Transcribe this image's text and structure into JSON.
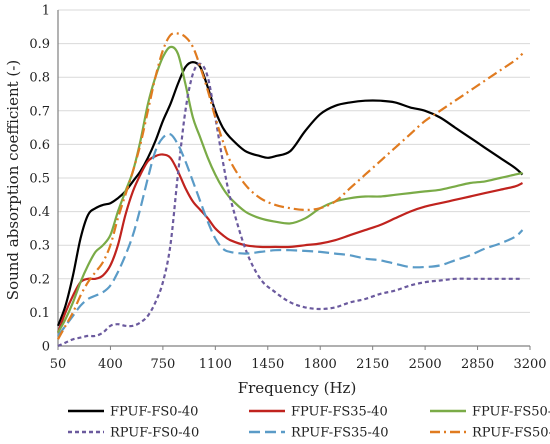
{
  "chart_data": {
    "type": "line",
    "title": "",
    "xlabel": "Frequency (Hz)",
    "ylabel": "Sound absorption coefficient (-)",
    "xlim": [
      50,
      3200
    ],
    "ylim": [
      0,
      1
    ],
    "xticks": [
      50,
      400,
      750,
      1100,
      1450,
      1800,
      2150,
      2500,
      2850,
      3200
    ],
    "yticks": [
      0,
      0.1,
      0.2,
      0.3,
      0.4,
      0.5,
      0.6,
      0.7,
      0.8,
      0.9,
      1
    ],
    "grid": "horizontal",
    "legend_position": "bottom",
    "series": [
      {
        "name": "FPUF-FS0-40",
        "color": "#000000",
        "dash": "solid",
        "x": [
          50,
          100,
          150,
          200,
          250,
          300,
          350,
          400,
          450,
          500,
          550,
          600,
          650,
          700,
          750,
          800,
          850,
          900,
          950,
          1000,
          1050,
          1100,
          1150,
          1200,
          1300,
          1400,
          1450,
          1500,
          1600,
          1700,
          1800,
          1900,
          2000,
          2100,
          2200,
          2300,
          2400,
          2500,
          2600,
          2700,
          2800,
          2900,
          3000,
          3100,
          3150
        ],
        "y": [
          0.06,
          0.12,
          0.21,
          0.32,
          0.39,
          0.41,
          0.42,
          0.425,
          0.44,
          0.46,
          0.49,
          0.52,
          0.56,
          0.61,
          0.67,
          0.72,
          0.78,
          0.83,
          0.845,
          0.83,
          0.77,
          0.7,
          0.65,
          0.62,
          0.58,
          0.565,
          0.56,
          0.565,
          0.58,
          0.64,
          0.69,
          0.715,
          0.725,
          0.73,
          0.73,
          0.725,
          0.71,
          0.7,
          0.68,
          0.65,
          0.62,
          0.59,
          0.56,
          0.53,
          0.51
        ]
      },
      {
        "name": "FPUF-FS35-40",
        "color": "#c0231e",
        "dash": "solid",
        "x": [
          50,
          100,
          150,
          200,
          250,
          300,
          350,
          400,
          450,
          500,
          550,
          600,
          650,
          700,
          750,
          800,
          850,
          900,
          950,
          1000,
          1050,
          1100,
          1150,
          1200,
          1300,
          1400,
          1500,
          1600,
          1700,
          1800,
          1900,
          2000,
          2100,
          2200,
          2300,
          2400,
          2500,
          2600,
          2700,
          2800,
          2900,
          3000,
          3100,
          3150
        ],
        "y": [
          0.04,
          0.1,
          0.15,
          0.19,
          0.2,
          0.2,
          0.21,
          0.24,
          0.3,
          0.39,
          0.46,
          0.51,
          0.55,
          0.565,
          0.57,
          0.56,
          0.52,
          0.47,
          0.43,
          0.405,
          0.38,
          0.35,
          0.33,
          0.315,
          0.3,
          0.295,
          0.295,
          0.295,
          0.3,
          0.305,
          0.315,
          0.33,
          0.345,
          0.36,
          0.38,
          0.4,
          0.415,
          0.425,
          0.435,
          0.445,
          0.455,
          0.465,
          0.475,
          0.485
        ]
      },
      {
        "name": "FPUF-FS50-40",
        "color": "#7aab47",
        "dash": "solid",
        "x": [
          50,
          100,
          150,
          200,
          250,
          300,
          350,
          400,
          450,
          500,
          550,
          600,
          650,
          700,
          750,
          800,
          850,
          900,
          950,
          1000,
          1050,
          1100,
          1150,
          1200,
          1300,
          1400,
          1500,
          1600,
          1700,
          1800,
          1900,
          2000,
          2100,
          2200,
          2300,
          2400,
          2500,
          2600,
          2700,
          2800,
          2900,
          3000,
          3100,
          3150
        ],
        "y": [
          0.04,
          0.08,
          0.13,
          0.19,
          0.24,
          0.28,
          0.3,
          0.33,
          0.4,
          0.46,
          0.52,
          0.61,
          0.72,
          0.8,
          0.86,
          0.89,
          0.87,
          0.78,
          0.68,
          0.62,
          0.56,
          0.51,
          0.47,
          0.44,
          0.4,
          0.38,
          0.37,
          0.365,
          0.38,
          0.41,
          0.43,
          0.44,
          0.445,
          0.445,
          0.45,
          0.455,
          0.46,
          0.465,
          0.475,
          0.485,
          0.49,
          0.5,
          0.51,
          0.515
        ]
      },
      {
        "name": "RPUF-FS0-40",
        "color": "#6b5a9e",
        "dash": "short",
        "x": [
          50,
          100,
          150,
          200,
          250,
          300,
          350,
          400,
          450,
          500,
          550,
          600,
          650,
          700,
          750,
          800,
          850,
          900,
          950,
          1000,
          1050,
          1100,
          1150,
          1200,
          1300,
          1400,
          1500,
          1600,
          1700,
          1800,
          1900,
          2000,
          2100,
          2200,
          2300,
          2400,
          2500,
          2600,
          2700,
          2800,
          2900,
          3000,
          3100,
          3150
        ],
        "y": [
          0.0,
          0.01,
          0.02,
          0.025,
          0.03,
          0.03,
          0.04,
          0.06,
          0.065,
          0.06,
          0.06,
          0.07,
          0.09,
          0.13,
          0.19,
          0.3,
          0.51,
          0.7,
          0.81,
          0.84,
          0.8,
          0.68,
          0.55,
          0.44,
          0.29,
          0.2,
          0.16,
          0.13,
          0.115,
          0.11,
          0.115,
          0.13,
          0.14,
          0.155,
          0.165,
          0.18,
          0.19,
          0.195,
          0.2,
          0.2,
          0.2,
          0.2,
          0.2,
          0.2
        ]
      },
      {
        "name": "RPUF-FS35-40",
        "color": "#5a9bc7",
        "dash": "long",
        "x": [
          50,
          100,
          150,
          200,
          250,
          300,
          350,
          400,
          450,
          500,
          550,
          600,
          650,
          700,
          750,
          800,
          850,
          900,
          950,
          1000,
          1050,
          1100,
          1150,
          1200,
          1300,
          1400,
          1500,
          1600,
          1700,
          1800,
          1900,
          2000,
          2100,
          2200,
          2300,
          2400,
          2500,
          2600,
          2700,
          2800,
          2900,
          3000,
          3100,
          3150
        ],
        "y": [
          0.03,
          0.06,
          0.09,
          0.12,
          0.14,
          0.15,
          0.16,
          0.18,
          0.22,
          0.27,
          0.33,
          0.41,
          0.5,
          0.58,
          0.62,
          0.63,
          0.6,
          0.55,
          0.49,
          0.43,
          0.37,
          0.32,
          0.29,
          0.28,
          0.275,
          0.28,
          0.285,
          0.285,
          0.283,
          0.28,
          0.275,
          0.27,
          0.26,
          0.255,
          0.245,
          0.235,
          0.235,
          0.24,
          0.255,
          0.27,
          0.29,
          0.305,
          0.325,
          0.345
        ]
      },
      {
        "name": "RPUF-FS50-40",
        "color": "#e07b20",
        "dash": "dashdot",
        "x": [
          50,
          100,
          150,
          200,
          250,
          300,
          350,
          400,
          450,
          500,
          550,
          600,
          650,
          700,
          750,
          800,
          850,
          900,
          950,
          1000,
          1050,
          1100,
          1150,
          1200,
          1300,
          1400,
          1500,
          1600,
          1700,
          1800,
          1900,
          2000,
          2100,
          2200,
          2300,
          2400,
          2500,
          2600,
          2700,
          2800,
          2900,
          3000,
          3100,
          3150
        ],
        "y": [
          0.02,
          0.06,
          0.1,
          0.15,
          0.19,
          0.22,
          0.25,
          0.3,
          0.38,
          0.45,
          0.52,
          0.6,
          0.7,
          0.8,
          0.88,
          0.925,
          0.93,
          0.92,
          0.89,
          0.83,
          0.76,
          0.68,
          0.61,
          0.55,
          0.48,
          0.44,
          0.42,
          0.41,
          0.405,
          0.41,
          0.43,
          0.47,
          0.51,
          0.55,
          0.59,
          0.63,
          0.67,
          0.7,
          0.73,
          0.76,
          0.79,
          0.82,
          0.85,
          0.87
        ]
      }
    ]
  }
}
